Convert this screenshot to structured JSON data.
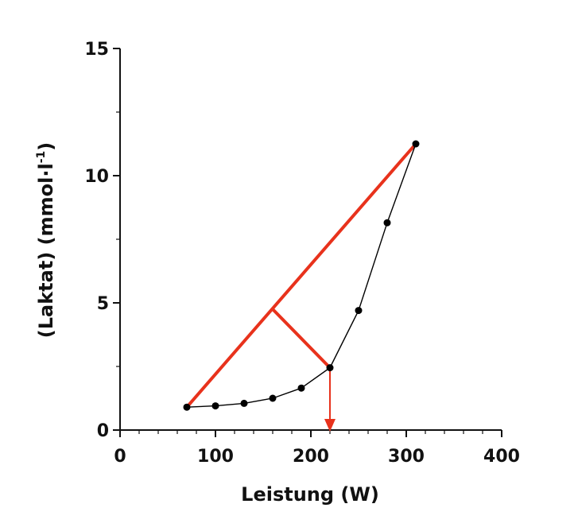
{
  "chart_data": {
    "type": "line",
    "title": "",
    "xlabel": "Leistung (W)",
    "ylabel": {
      "main": "(Laktat) (mmol·l",
      "superscript": "-1",
      "close": ")"
    },
    "xlim": [
      0,
      400
    ],
    "ylim": [
      0,
      15
    ],
    "x_ticks": [
      0,
      100,
      200,
      300,
      400
    ],
    "y_ticks": [
      0,
      5,
      10,
      15
    ],
    "x_tick_labels": [
      "0",
      "100",
      "200",
      "300",
      "400"
    ],
    "y_tick_labels": [
      "0",
      "5",
      "10",
      "15"
    ],
    "x_minor_step": 20,
    "y_minor_step": 2.5,
    "grid": false,
    "series": [
      {
        "x": [
          70,
          100,
          130,
          160,
          190,
          220,
          250,
          280,
          310
        ],
        "y": [
          0.9,
          0.95,
          1.05,
          1.25,
          1.65,
          2.45,
          4.7,
          8.15,
          11.25
        ]
      }
    ],
    "annotations": {
      "baseline_line": {
        "from": [
          70,
          0.9
        ],
        "to": [
          310,
          11.25
        ]
      },
      "perpendicular": {
        "from": [
          160,
          4.75
        ],
        "to": [
          220,
          2.45
        ]
      },
      "threshold_arrow": {
        "x": 220,
        "from_y": 2.45,
        "to_y": 0
      }
    },
    "colors": {
      "data": "#000000",
      "annotation": "#e8321c"
    }
  }
}
